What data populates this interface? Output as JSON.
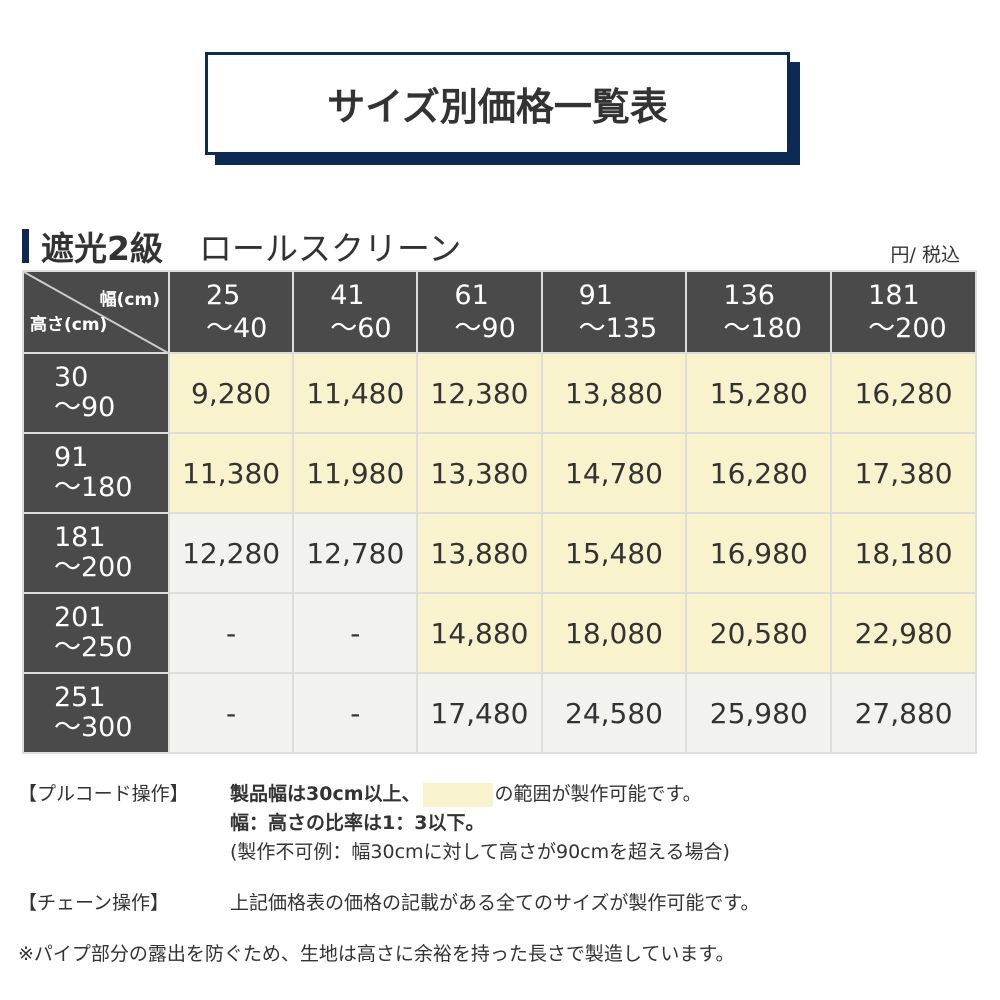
{
  "title": "サイズ別価格一覧表",
  "section": {
    "grade": "遮光2級",
    "product": "ロールスクリーン",
    "unit": "円/ 税込"
  },
  "table": {
    "corner_width": "幅(cm)",
    "corner_height": "高さ(cm)",
    "columns": [
      [
        "25",
        "～40"
      ],
      [
        "41",
        "～60"
      ],
      [
        "61",
        "～90"
      ],
      [
        "91",
        "～135"
      ],
      [
        "136",
        "～180"
      ],
      [
        "181",
        "～200"
      ]
    ],
    "rows": [
      {
        "h": [
          "30",
          "～90"
        ],
        "v": [
          "9,280",
          "11,480",
          "12,380",
          "13,880",
          "15,280",
          "16,280"
        ],
        "y": [
          1,
          1,
          1,
          1,
          1,
          1
        ]
      },
      {
        "h": [
          "91",
          "～180"
        ],
        "v": [
          "11,380",
          "11,980",
          "13,380",
          "14,780",
          "16,280",
          "17,380"
        ],
        "y": [
          1,
          1,
          1,
          1,
          1,
          1
        ]
      },
      {
        "h": [
          "181",
          "～200"
        ],
        "v": [
          "12,280",
          "12,780",
          "13,880",
          "15,480",
          "16,980",
          "18,180"
        ],
        "y": [
          0,
          0,
          1,
          1,
          1,
          1
        ]
      },
      {
        "h": [
          "201",
          "～250"
        ],
        "v": [
          "-",
          "-",
          "14,880",
          "18,080",
          "20,580",
          "22,980"
        ],
        "y": [
          0,
          0,
          1,
          1,
          1,
          1
        ]
      },
      {
        "h": [
          "251",
          "～300"
        ],
        "v": [
          "-",
          "-",
          "17,480",
          "24,580",
          "25,980",
          "27,880"
        ],
        "y": [
          0,
          0,
          0,
          0,
          0,
          0
        ]
      }
    ],
    "colors": {
      "header": "#4a4a4a",
      "available": "#f8f3cd",
      "other": "#f2f2ee",
      "accent": "#0c2a52"
    }
  },
  "notes": {
    "pull_label": "【プルコード操作】",
    "pull_1a": "製品幅は30cm以上、",
    "pull_1b": "の範囲が製作可能です。",
    "pull_2": "幅：高さの比率は1：3以下。",
    "pull_3": "(製作不可例：幅30cmに対して高さが90cmを超える場合)",
    "chain_label": "【チェーン操作】",
    "chain_text": "上記価格表の価格の記載がある全てのサイズが製作可能です。",
    "footnote": "※パイプ部分の露出を防ぐため、生地は高さに余裕を持った長さで製造しています。"
  }
}
